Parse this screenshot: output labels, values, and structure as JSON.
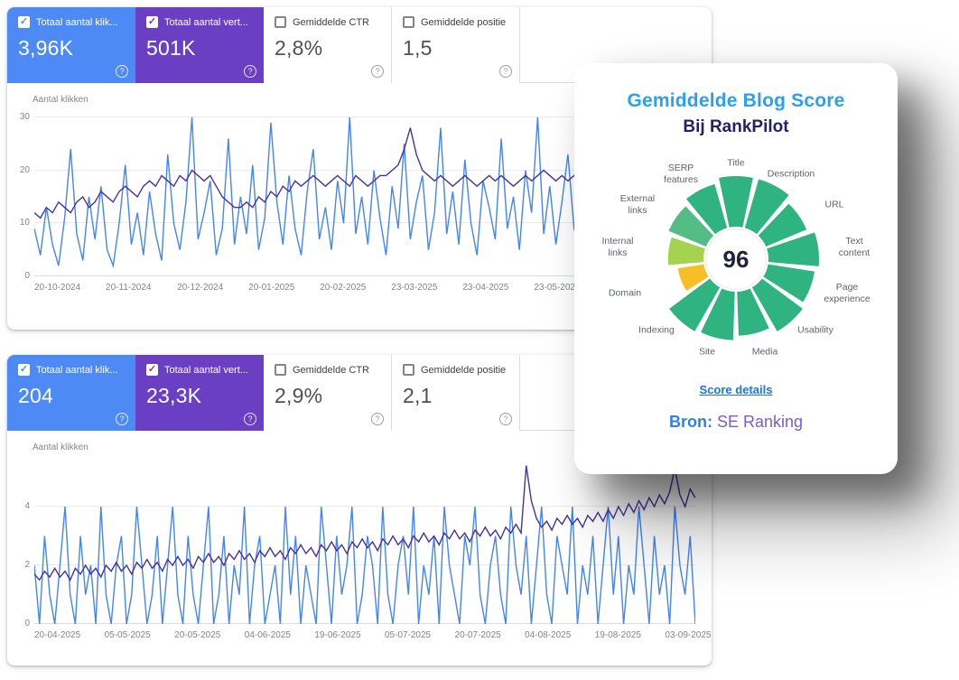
{
  "panels": [
    {
      "cards": [
        {
          "label": "Totaal aantal klik...",
          "value": "3,96K",
          "checked": true,
          "bg": "#4e8af6"
        },
        {
          "label": "Totaal aantal vert...",
          "value": "501K",
          "checked": true,
          "bg": "#6b3fc4"
        },
        {
          "label": "Gemiddelde CTR",
          "value": "2,8%",
          "checked": false,
          "bg": "#ffffff"
        },
        {
          "label": "Gemiddelde positie",
          "value": "1,5",
          "checked": false,
          "bg": "#ffffff"
        }
      ],
      "chart": {
        "type": "line",
        "ylabel": "Aantal klikken",
        "yticks": [
          0,
          10,
          20,
          30
        ],
        "ymax": 31,
        "xstep_pct": 10.8,
        "xticks": [
          "20-10-2024",
          "20-11-2024",
          "20-12-2024",
          "20-01-2025",
          "20-02-2025",
          "23-03-2025",
          "23-04-2025",
          "23-05-2025"
        ],
        "series": [
          {
            "name": "klikken",
            "color": "#4285f4",
            "values": [
              9,
              4,
              13,
              6,
              2,
              11,
              24,
              8,
              3,
              15,
              7,
              17,
              5,
              2,
              10,
              21,
              6,
              12,
              4,
              16,
              8,
              3,
              23,
              10,
              5,
              14,
              30,
              7,
              12,
              18,
              4,
              9,
              26,
              6,
              15,
              8,
              21,
              5,
              11,
              29,
              14,
              6,
              19,
              9,
              4,
              16,
              24,
              7,
              13,
              5,
              18,
              10,
              30,
              8,
              15,
              6,
              20,
              11,
              4,
              17,
              9,
              25,
              7,
              14,
              19,
              5,
              12,
              28,
              8,
              16,
              6,
              22,
              10,
              4,
              18,
              13,
              7,
              26,
              9,
              15,
              5,
              20,
              12,
              30,
              8,
              17,
              6,
              14,
              23,
              9,
              5,
              19,
              11,
              27,
              7,
              16,
              10,
              4,
              21,
              13,
              8,
              18,
              6,
              24,
              12,
              5,
              15,
              9,
              22,
              7
            ]
          },
          {
            "name": "vertoningen",
            "color": "#4632a0",
            "values": [
              12,
              11,
              13,
              12,
              14,
              13,
              12,
              14,
              15,
              13,
              14,
              16,
              15,
              14,
              16,
              17,
              16,
              15,
              17,
              18,
              17,
              19,
              18,
              17,
              19,
              18,
              20,
              19,
              18,
              19,
              17,
              15,
              14,
              13,
              13,
              14,
              13,
              15,
              14,
              16,
              15,
              17,
              16,
              18,
              17,
              18,
              19,
              18,
              17,
              18,
              19,
              18,
              17,
              19,
              18,
              17,
              18,
              19,
              19,
              20,
              21,
              24,
              28,
              23,
              20,
              19,
              18,
              19,
              18,
              17,
              18,
              19,
              18,
              17,
              18,
              19,
              18,
              19,
              18,
              17,
              18,
              19,
              18,
              19,
              20,
              19,
              18,
              19,
              18,
              19,
              20,
              19,
              18,
              19,
              20,
              19,
              19,
              18,
              19,
              20,
              18,
              19,
              18,
              19,
              20,
              19,
              18,
              19,
              19,
              20
            ]
          }
        ]
      }
    },
    {
      "cards": [
        {
          "label": "Totaal aantal klik...",
          "value": "204",
          "checked": true,
          "bg": "#4e8af6"
        },
        {
          "label": "Totaal aantal vert...",
          "value": "23,3K",
          "checked": true,
          "bg": "#6b3fc4"
        },
        {
          "label": "Gemiddelde CTR",
          "value": "2,9%",
          "checked": false,
          "bg": "#ffffff"
        },
        {
          "label": "Gemiddelde positie",
          "value": "2,1",
          "checked": false,
          "bg": "#ffffff"
        }
      ],
      "chart": {
        "type": "line",
        "ylabel": "Aantal klikken",
        "yticks": [
          0,
          2,
          4
        ],
        "ymax": 5.6,
        "xstep_pct": 10.6,
        "xticks": [
          "20-04-2025",
          "05-05-2025",
          "20-05-2025",
          "04-06-2025",
          "19-06-2025",
          "05-07-2025",
          "20-07-2025",
          "04-08-2025",
          "19-08-2025",
          "03-09-2025"
        ],
        "series": [
          {
            "name": "klikken",
            "color": "#4285f4",
            "values": [
              2,
              0,
              3,
              1,
              0,
              2,
              4,
              1,
              0,
              3,
              1,
              2,
              0,
              4,
              1,
              0,
              2,
              3,
              0,
              1,
              4,
              2,
              0,
              1,
              3,
              0,
              2,
              4,
              1,
              0,
              3,
              1,
              0,
              2,
              4,
              0,
              1,
              3,
              0,
              2,
              1,
              4,
              0,
              2,
              3,
              0,
              1,
              2,
              0,
              4,
              1,
              3,
              0,
              2,
              1,
              0,
              4,
              2,
              0,
              3,
              1,
              2,
              4,
              0,
              1,
              3,
              2,
              0,
              4,
              1,
              0,
              2,
              3,
              1,
              4,
              0,
              2,
              1,
              3,
              0,
              4,
              2,
              1,
              0,
              3,
              2,
              4,
              1,
              0,
              2,
              3,
              1,
              0,
              4,
              2,
              1,
              3,
              0,
              2,
              4,
              1,
              0,
              3,
              2,
              1,
              4,
              0,
              2,
              1,
              3,
              0,
              2,
              4,
              1,
              3,
              0,
              2,
              1,
              4,
              2,
              0,
              3,
              1,
              2,
              0,
              4,
              2,
              1,
              3,
              0
            ]
          },
          {
            "name": "vertoningen",
            "color": "#4632a0",
            "values": [
              1.7,
              1.5,
              1.8,
              1.6,
              1.9,
              1.6,
              1.8,
              1.5,
              1.9,
              1.7,
              2.0,
              1.7,
              1.9,
              1.6,
              2.0,
              1.8,
              2.1,
              1.8,
              2.0,
              1.7,
              2.1,
              1.9,
              2.2,
              1.9,
              2.1,
              1.8,
              2.2,
              2.0,
              2.3,
              2.0,
              2.2,
              1.9,
              2.3,
              2.1,
              2.4,
              2.1,
              2.3,
              2.0,
              2.4,
              2.2,
              2.5,
              2.2,
              2.4,
              2.1,
              2.5,
              2.3,
              2.6,
              2.3,
              2.5,
              2.2,
              2.6,
              2.4,
              2.7,
              2.4,
              2.6,
              2.3,
              2.7,
              2.5,
              2.8,
              2.5,
              2.7,
              2.4,
              2.8,
              2.6,
              2.9,
              2.6,
              2.8,
              2.5,
              2.9,
              2.7,
              3.0,
              2.7,
              2.9,
              2.6,
              3.0,
              2.8,
              3.1,
              2.8,
              3.0,
              2.7,
              3.1,
              2.9,
              3.2,
              2.9,
              3.1,
              2.8,
              3.2,
              3.0,
              3.3,
              3.0,
              3.2,
              2.9,
              3.3,
              3.1,
              3.4,
              3.1,
              5.4,
              4.2,
              3.6,
              3.3,
              3.5,
              3.2,
              3.6,
              3.4,
              3.7,
              3.4,
              3.6,
              3.3,
              3.7,
              3.5,
              3.8,
              3.5,
              3.9,
              3.6,
              4.0,
              3.7,
              4.1,
              3.8,
              4.2,
              3.9,
              4.3,
              4.0,
              4.4,
              4.1,
              4.5,
              5.3,
              4.4,
              4.0,
              4.6,
              4.3
            ]
          }
        ]
      }
    }
  ],
  "score_card": {
    "title": "Gemiddelde Blog Score",
    "subtitle": "Bij RankPilot",
    "score": "96",
    "link": "Score details",
    "source_label": "Bron:",
    "source_value": " SE Ranking",
    "segments": [
      {
        "label": "Title",
        "color": "#2fb380",
        "size": 1.0
      },
      {
        "label": "Description",
        "color": "#2fb380",
        "size": 1.0
      },
      {
        "label": "URL",
        "color": "#2fb380",
        "size": 0.87
      },
      {
        "label": "Text\ncontent",
        "color": "#2fb380",
        "size": 1.0
      },
      {
        "label": "Page\nexperience",
        "color": "#2fb380",
        "size": 0.93
      },
      {
        "label": "Usability",
        "color": "#2fb380",
        "size": 1.0
      },
      {
        "label": "Media",
        "color": "#2fb380",
        "size": 0.87
      },
      {
        "label": "Site",
        "color": "#2fb380",
        "size": 0.96
      },
      {
        "label": "Indexing",
        "color": "#2fb380",
        "size": 1.0
      },
      {
        "label": "Domain",
        "color": "#f6bf26",
        "size": 0.52
      },
      {
        "label": "Internal\nlinks",
        "color": "#a5d34f",
        "size": 0.7
      },
      {
        "label": "External\nlinks",
        "color": "#53bd85",
        "size": 0.8
      },
      {
        "label": "SERP\nfeatures",
        "color": "#2fb380",
        "size": 0.9
      }
    ]
  }
}
